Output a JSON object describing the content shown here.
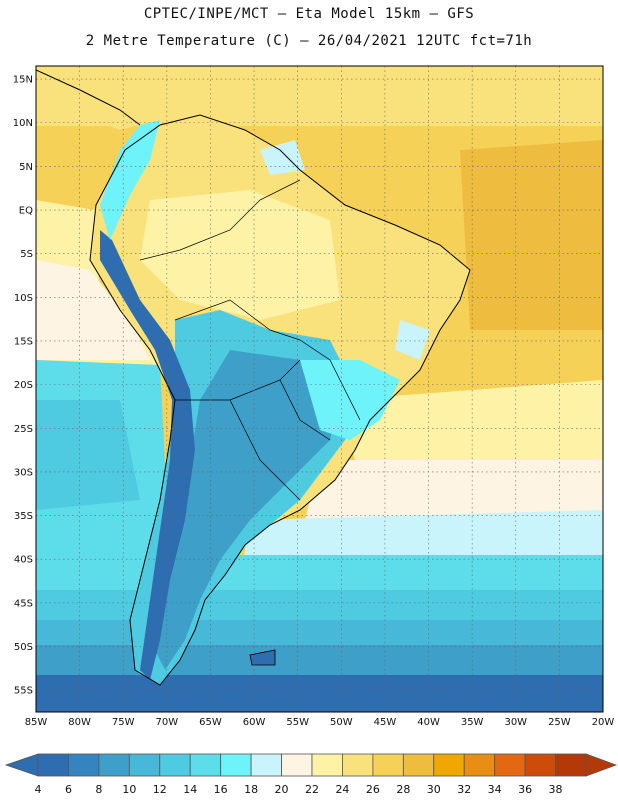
{
  "header": {
    "line1": "CPTEC/INPE/MCT –  Eta Model 15km – GFS",
    "line2": "2 Metre Temperature (C) – 26/04/2021 12UTC fct=71h"
  },
  "map": {
    "lat_labels": [
      "15N",
      "10N",
      "5N",
      "EQ",
      "5S",
      "10S",
      "15S",
      "20S",
      "25S",
      "30S",
      "35S",
      "40S",
      "45S",
      "50S",
      "55S"
    ],
    "lon_labels": [
      "85W",
      "80W",
      "75W",
      "70W",
      "65W",
      "60W",
      "55W",
      "50W",
      "45W",
      "40W",
      "35W",
      "30W",
      "25W",
      "20W"
    ],
    "lon_range": [
      -85,
      -20
    ],
    "lat_range": [
      -57.5,
      16.5
    ],
    "gridlines": true
  },
  "colorbar": {
    "labels": [
      "4",
      "6",
      "8",
      "10",
      "12",
      "14",
      "16",
      "18",
      "20",
      "22",
      "24",
      "26",
      "28",
      "30",
      "32",
      "34",
      "36",
      "38"
    ],
    "colors": [
      "#2d6db0",
      "#3584c0",
      "#3ea0c9",
      "#47b8d8",
      "#4ecbe0",
      "#5ddcea",
      "#6df3f9",
      "#c9f4fb",
      "#fdf4e3",
      "#fdf2a6",
      "#f9e17b",
      "#f5d158",
      "#eebd3f",
      "#f0a800",
      "#e98e15",
      "#e26812",
      "#cd4c0a",
      "#b33a08"
    ]
  }
}
